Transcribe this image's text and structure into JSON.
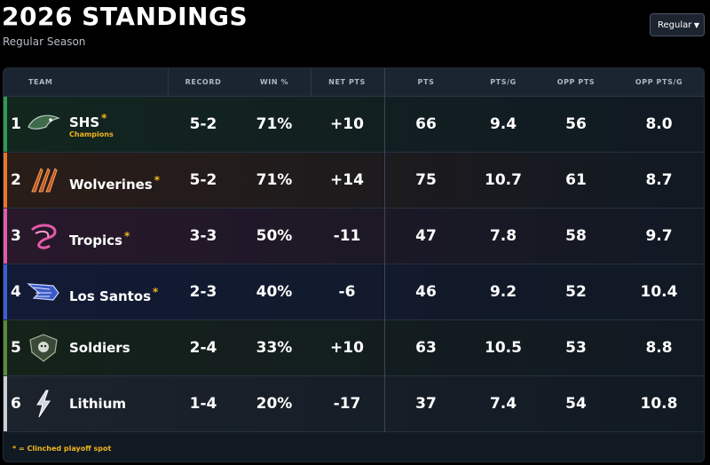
{
  "header": {
    "title": "2026 STANDINGS",
    "subtitle": "Regular Season",
    "season_select": {
      "value": "Regular"
    }
  },
  "table": {
    "columns": {
      "team": "TEAM",
      "record": "RECORD",
      "win_pct": "WIN %",
      "net_pts": "NET PTS",
      "pts": "PTS",
      "pts_g": "PTS/G",
      "opp_pts": "OPP PTS",
      "opp_pts_g": "OPP PTS/G"
    },
    "rows": [
      {
        "rank": "1",
        "team": "SHS",
        "star": "*",
        "note": "Champions",
        "record": "5-2",
        "win_pct": "71%",
        "net_pts": "+10",
        "pts": "66",
        "pts_g": "9.4",
        "opp_pts": "56",
        "opp_pts_g": "8.0",
        "accent": "#2e9a52",
        "tint": "#12261e",
        "logo_icon": "hawk-logo-icon"
      },
      {
        "rank": "2",
        "team": "Wolverines",
        "star": "*",
        "note": "",
        "record": "5-2",
        "win_pct": "71%",
        "net_pts": "+14",
        "pts": "75",
        "pts_g": "10.7",
        "opp_pts": "61",
        "opp_pts_g": "8.7",
        "accent": "#e8742a",
        "tint": "#2a1d17",
        "logo_icon": "claw-logo-icon"
      },
      {
        "rank": "3",
        "team": "Tropics",
        "star": "*",
        "note": "",
        "record": "3-3",
        "win_pct": "50%",
        "net_pts": "-11",
        "pts": "47",
        "pts_g": "7.8",
        "opp_pts": "58",
        "opp_pts_g": "9.7",
        "accent": "#e05aa8",
        "tint": "#28182a",
        "logo_icon": "swirl-logo-icon"
      },
      {
        "rank": "4",
        "team": "Los Santos",
        "star": "*",
        "note": "",
        "record": "2-3",
        "win_pct": "40%",
        "net_pts": "-6",
        "pts": "46",
        "pts_g": "9.2",
        "opp_pts": "52",
        "opp_pts_g": "10.4",
        "accent": "#3a5fd0",
        "tint": "#121a36",
        "logo_icon": "wing-logo-icon"
      },
      {
        "rank": "5",
        "team": "Soldiers",
        "star": "",
        "note": "",
        "record": "2-4",
        "win_pct": "33%",
        "net_pts": "+10",
        "pts": "63",
        "pts_g": "10.5",
        "opp_pts": "53",
        "opp_pts_g": "8.8",
        "accent": "#5a8a3a",
        "tint": "#15221a",
        "logo_icon": "shield-logo-icon"
      },
      {
        "rank": "6",
        "team": "Lithium",
        "star": "",
        "note": "",
        "record": "1-4",
        "win_pct": "20%",
        "net_pts": "-17",
        "pts": "37",
        "pts_g": "7.4",
        "opp_pts": "54",
        "opp_pts_g": "10.8",
        "accent": "#c9ced6",
        "tint": "#1c232c",
        "logo_icon": "bolt-logo-icon"
      }
    ],
    "footnote": "* = Clinched playoff spot"
  }
}
